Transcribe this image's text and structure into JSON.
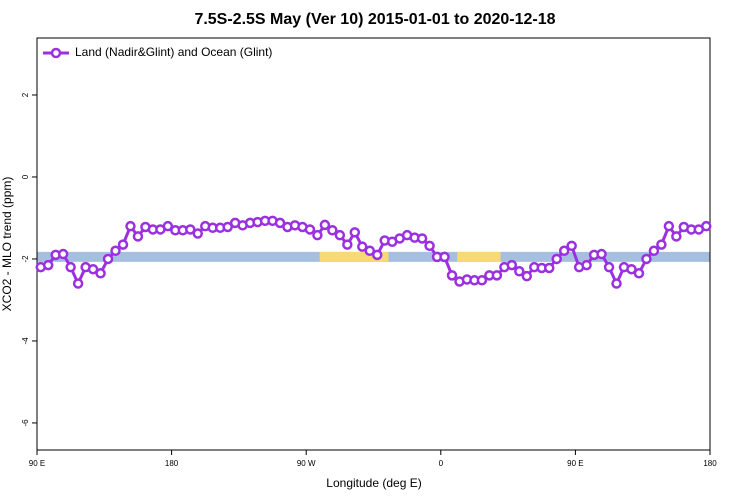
{
  "chart_data": {
    "type": "line",
    "title": "7.5S-2.5S May (Ver 10)   2015-01-01 to 2020-12-18",
    "x_label": "Longitude (deg E)",
    "y_label": "XCO2 - MLO trend (ppm)",
    "xlim": [
      90,
      540
    ],
    "xticks": [
      {
        "value": 90,
        "label": "90 E"
      },
      180,
      {
        "value": 270,
        "label": "90 W"
      },
      {
        "value": 360,
        "label": "0"
      },
      {
        "value": 450,
        "label": "90 E"
      },
      {
        "value": 540,
        "label": "180"
      }
    ],
    "ylim": [
      -6.66,
      3.39
    ],
    "yticks": [
      2,
      0,
      -2,
      -4,
      -6
    ],
    "legend": "top-left",
    "band": {
      "value": -1.95,
      "color": "#a7bfdf",
      "highlight_color": "#f9d877",
      "highlights": [
        {
          "from": 279,
          "to": 325
        },
        {
          "from": 371,
          "to": 400
        }
      ]
    },
    "x": [
      92.5,
      97.5,
      102.5,
      107.5,
      112.5,
      117.5,
      122.5,
      127.5,
      132.5,
      137.5,
      142.5,
      147.5,
      152.5,
      157.5,
      162.5,
      167.5,
      172.5,
      177.5,
      182.5,
      187.5,
      192.5,
      197.5,
      202.5,
      207.5,
      212.5,
      217.5,
      222.5,
      227.5,
      232.5,
      237.5,
      242.5,
      247.5,
      252.5,
      257.5,
      262.5,
      267.5,
      272.5,
      277.5,
      282.5,
      287.5,
      292.5,
      297.5,
      302.5,
      307.5,
      312.5,
      317.5,
      322.5,
      327.5,
      332.5,
      337.5,
      342.5,
      347.5,
      352.5,
      357.5,
      362.5,
      367.5,
      372.5,
      377.5,
      382.5,
      387.5,
      392.5,
      397.5,
      402.5,
      407.5,
      412.5,
      417.5,
      422.5,
      427.5,
      432.5,
      437.5,
      442.5,
      447.5,
      452.5,
      457.5,
      462.5,
      467.5,
      472.5,
      477.5,
      482.5,
      487.5,
      492.5,
      497.5,
      502.5,
      507.5,
      512.5,
      517.5,
      522.5,
      527.5,
      532.5,
      537.5
    ],
    "series": [
      {
        "name": "Land (Nadir&Glint) and Ocean (Glint)",
        "color": "#9b30e0",
        "values": [
          -2.2,
          -2.15,
          -1.9,
          -1.88,
          -2.2,
          -2.6,
          -2.2,
          -2.25,
          -2.35,
          -2.0,
          -1.8,
          -1.65,
          -1.2,
          -1.45,
          -1.22,
          -1.28,
          -1.28,
          -1.2,
          -1.3,
          -1.3,
          -1.28,
          -1.38,
          -1.2,
          -1.24,
          -1.24,
          -1.22,
          -1.12,
          -1.18,
          -1.12,
          -1.1,
          -1.07,
          -1.07,
          -1.12,
          -1.22,
          -1.18,
          -1.22,
          -1.28,
          -1.42,
          -1.17,
          -1.3,
          -1.42,
          -1.65,
          -1.35,
          -1.7,
          -1.8,
          -1.9,
          -1.55,
          -1.58,
          -1.5,
          -1.42,
          -1.48,
          -1.5,
          -1.68,
          -1.95,
          -1.95,
          -2.4,
          -2.55,
          -2.5,
          -2.52,
          -2.52,
          -2.4,
          -2.4,
          -2.2,
          -2.15,
          -2.3,
          -2.42,
          -2.2,
          -2.22,
          -2.22,
          -2.0,
          -1.8,
          -1.68,
          -2.2,
          -2.15,
          -1.9,
          -1.88,
          -2.2,
          -2.6,
          -2.2,
          -2.25,
          -2.35,
          -2.0,
          -1.8,
          -1.65,
          -1.2,
          -1.45,
          -1.22,
          -1.28,
          -1.28,
          -1.2
        ]
      }
    ]
  }
}
